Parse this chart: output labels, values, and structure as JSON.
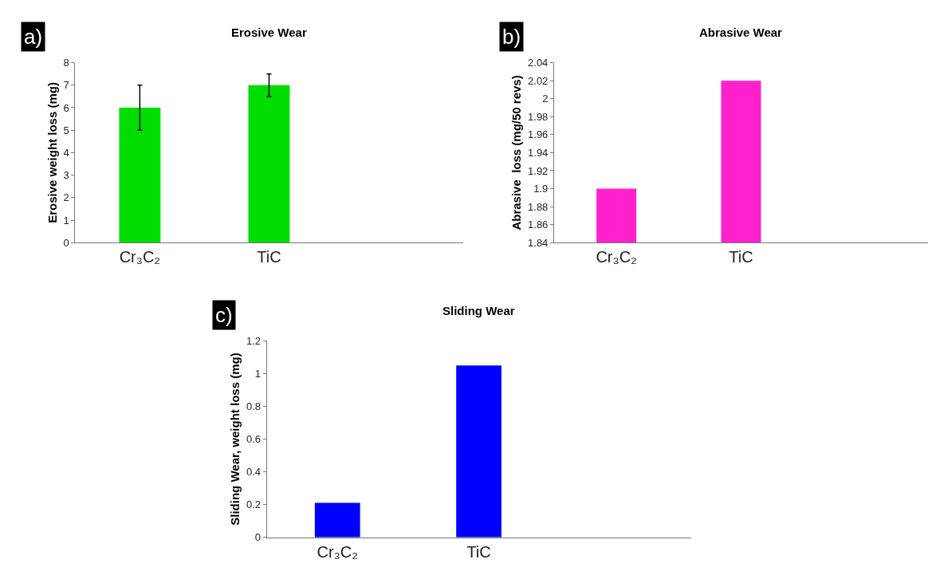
{
  "chart_data": [
    {
      "type": "bar",
      "title": "Erosive Wear",
      "ylabel": "Erosive weight loss (mg)",
      "categories": [
        "Cr₃C₂",
        "TiC",
        null
      ],
      "values": [
        6,
        7,
        null
      ],
      "errors": [
        1,
        0.5,
        null
      ],
      "color": "#00dd00",
      "ylim": [
        0,
        8
      ],
      "yticks": [
        0,
        1,
        2,
        3,
        4,
        5,
        6,
        7,
        8
      ],
      "annotations": [
        "a)"
      ]
    },
    {
      "type": "bar",
      "title": "Abrasive Wear",
      "ylabel": "Abrasive  loss (mg/50 revs)",
      "categories": [
        "Cr₃C₂",
        "TiC",
        null
      ],
      "values": [
        1.9,
        2.02,
        null
      ],
      "color": "#ff22cc",
      "ylim": [
        1.84,
        2.04
      ],
      "yticks": [
        1.84,
        1.86,
        1.88,
        1.9,
        1.92,
        1.94,
        1.96,
        1.98,
        2,
        2.02,
        2.04
      ],
      "annotations": [
        "b)"
      ]
    },
    {
      "type": "bar",
      "title": "Sliding Wear",
      "ylabel": "Sliding Wear, weight loss (mg)",
      "categories": [
        "Cr₃C₂",
        "TiC",
        null
      ],
      "values": [
        0.21,
        1.05,
        null
      ],
      "color": "#0000ff",
      "ylim": [
        0,
        1.2
      ],
      "yticks": [
        0,
        0.2,
        0.4,
        0.6,
        0.8,
        1,
        1.2
      ],
      "annotations": [
        "c)"
      ]
    }
  ]
}
